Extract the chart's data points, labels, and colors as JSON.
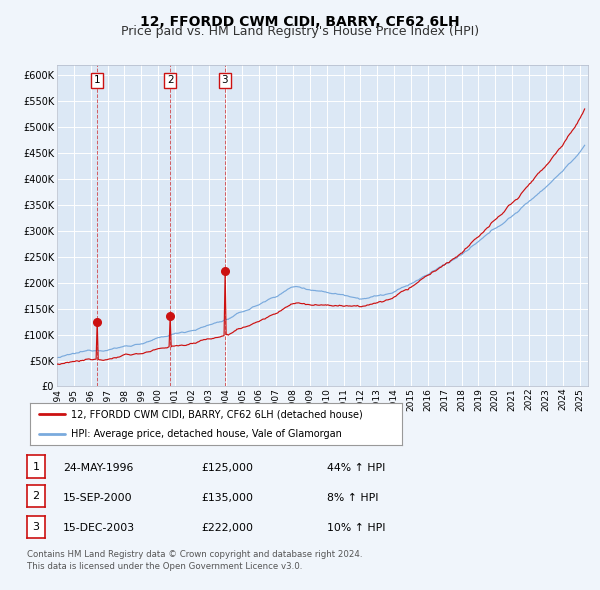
{
  "title": "12, FFORDD CWM CIDI, BARRY, CF62 6LH",
  "subtitle": "Price paid vs. HM Land Registry's House Price Index (HPI)",
  "ylim": [
    0,
    620000
  ],
  "xlim_start": 1994.0,
  "xlim_end": 2025.5,
  "background_color": "#f0f5fb",
  "plot_bg_color": "#dce8f5",
  "grid_color": "#ffffff",
  "red_color": "#cc1111",
  "blue_color": "#7aaadd",
  "sale_dates": [
    1996.38,
    2000.71,
    2003.96
  ],
  "sale_prices": [
    125000,
    135000,
    222000
  ],
  "sale_labels": [
    "1",
    "2",
    "3"
  ],
  "legend_line1": "12, FFORDD CWM CIDI, BARRY, CF62 6LH (detached house)",
  "legend_line2": "HPI: Average price, detached house, Vale of Glamorgan",
  "table_rows": [
    {
      "num": "1",
      "date": "24-MAY-1996",
      "price": "£125,000",
      "change": "44% ↑ HPI"
    },
    {
      "num": "2",
      "date": "15-SEP-2000",
      "price": "£135,000",
      "change": "8% ↑ HPI"
    },
    {
      "num": "3",
      "date": "15-DEC-2003",
      "price": "£222,000",
      "change": "10% ↑ HPI"
    }
  ],
  "footer": "Contains HM Land Registry data © Crown copyright and database right 2024.\nThis data is licensed under the Open Government Licence v3.0.",
  "title_fontsize": 10,
  "subtitle_fontsize": 9
}
